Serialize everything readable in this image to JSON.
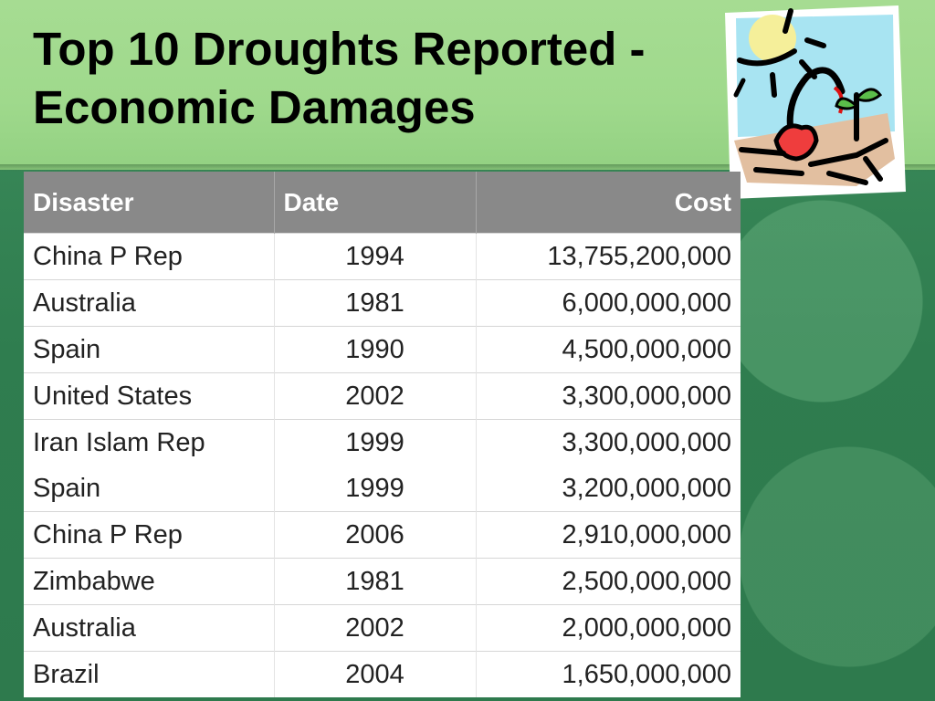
{
  "slide": {
    "title_lines": [
      "Top 10 Droughts Reported -",
      "Economic Damages"
    ]
  },
  "table": {
    "headers": {
      "disaster": "Disaster",
      "date": "Date",
      "cost": "Cost"
    },
    "rows": [
      {
        "disaster": "China P Rep",
        "date": "1994",
        "cost": "13,755,200,000"
      },
      {
        "disaster": "Australia",
        "date": "1981",
        "cost": "6,000,000,000"
      },
      {
        "disaster": "Spain",
        "date": "1990",
        "cost": "4,500,000,000"
      },
      {
        "disaster": "United States",
        "date": "2002",
        "cost": "3,300,000,000"
      },
      {
        "disaster": "Iran Islam Rep",
        "date": "1999",
        "cost": "3,300,000,000"
      },
      {
        "disaster": "Spain",
        "date": "1999",
        "cost": "3,200,000,000"
      },
      {
        "disaster": "China P Rep",
        "date": "2006",
        "cost": "2,910,000,000"
      },
      {
        "disaster": "Zimbabwe",
        "date": "1981",
        "cost": "2,500,000,000"
      },
      {
        "disaster": "Australia",
        "date": "2002",
        "cost": "2,000,000,000"
      },
      {
        "disaster": "Brazil",
        "date": "2004",
        "cost": "1,650,000,000"
      }
    ]
  },
  "clipart": {
    "icon": "drought-wilting-flower-icon"
  },
  "colors": {
    "header_bg": "#898989",
    "title_band": "#a6dc92",
    "background": "#2f7e50"
  }
}
